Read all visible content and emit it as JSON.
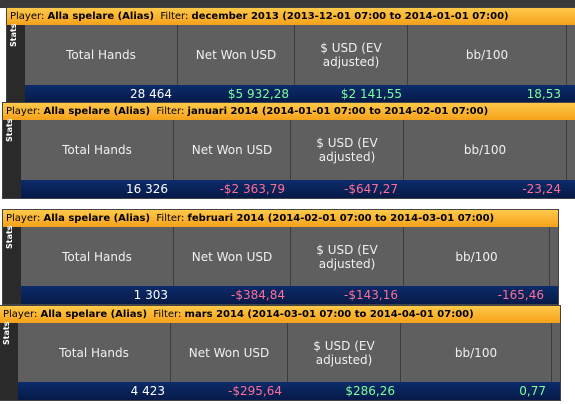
{
  "labels": {
    "player_label": "Player:",
    "player": "Alla spelare (Alias)",
    "filter_label": "Filter:",
    "stats": "Stats"
  },
  "columns": [
    "Total Hands",
    "Net Won USD",
    "$ USD (EV adjusted)",
    "bb/100"
  ],
  "panels": [
    {
      "filter": "december 2013 (2013-12-01 07:00 to 2014-01-01 07:00)",
      "values": [
        "28 464",
        "$5 932,28",
        "$2 141,55",
        "18,53"
      ]
    },
    {
      "filter": "januari 2014 (2014-01-01 07:00 to 2014-02-01 07:00)",
      "values": [
        "16 326",
        "-$2 363,79",
        "-$647,27",
        "-23,24"
      ]
    },
    {
      "filter": "februari 2014 (2014-02-01 07:00 to 2014-03-01 07:00)",
      "values": [
        "1 303",
        "-$384,84",
        "-$143,16",
        "-165,46"
      ]
    },
    {
      "filter": "mars 2014 (2014-03-01 07:00 to 2014-04-01 07:00)",
      "values": [
        "4 423",
        "-$295,64",
        "$286,26",
        "0,77"
      ]
    }
  ]
}
